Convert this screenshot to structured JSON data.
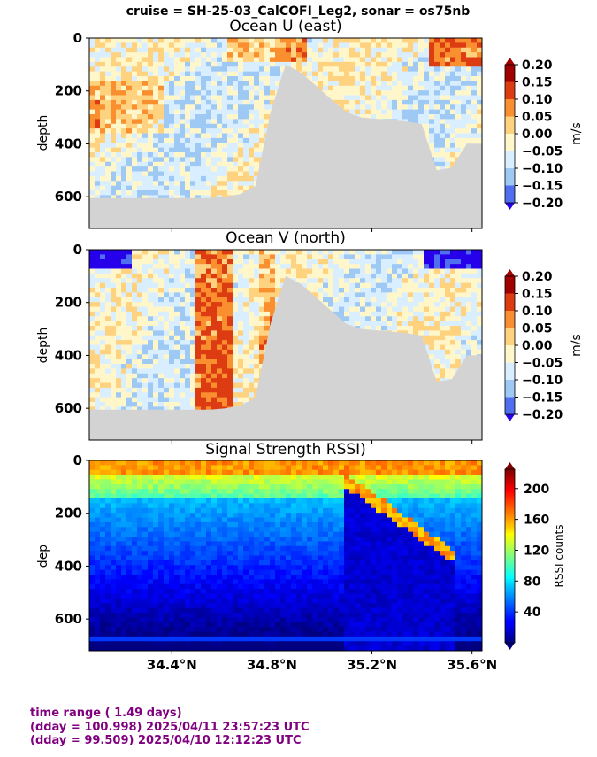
{
  "suptitle": "cruise = SH-25-03_CalCOFI_Leg2,  sonar = os75nb",
  "colors": {
    "bathymetry": "#d3d3d3",
    "footer_text": "#800080"
  },
  "chart_data": [
    {
      "type": "heatmap",
      "title": "Ocean U (east)",
      "ylabel": "depth",
      "xlabel": "",
      "x_tick_labels": [
        "34.4°N",
        "34.8°N",
        "35.2°N",
        "35.6°N"
      ],
      "x_ticks": [
        34.4,
        34.8,
        35.2,
        35.6
      ],
      "x_tick_labels_visible": false,
      "xlim": [
        34.07,
        35.64
      ],
      "y_tick_labels": [
        "0",
        "200",
        "400",
        "600"
      ],
      "y_ticks": [
        0,
        200,
        400,
        600
      ],
      "ylim": [
        720,
        0
      ],
      "y_inverted": true,
      "colorbar": {
        "label": "m/s",
        "ticks": [
          "0.20",
          "0.15",
          "0.10",
          "0.05",
          "0.00",
          "−0.05",
          "−0.10",
          "−0.15",
          "−0.20"
        ],
        "range": [
          -0.2,
          0.2
        ],
        "extend": "both",
        "colormap": "diverging blue-white-red"
      },
      "bathymetry_depth": [
        605,
        605,
        605,
        605,
        605,
        605,
        605,
        605,
        605,
        600,
        590,
        560,
        280,
        100,
        130,
        180,
        230,
        280,
        300,
        305,
        310,
        315,
        325,
        500,
        490,
        400,
        400
      ]
    },
    {
      "type": "heatmap",
      "title": "Ocean V (north)",
      "ylabel": "depth",
      "xlabel": "",
      "x_tick_labels": [
        "34.4°N",
        "34.8°N",
        "35.2°N",
        "35.6°N"
      ],
      "x_ticks": [
        34.4,
        34.8,
        35.2,
        35.6
      ],
      "x_tick_labels_visible": false,
      "xlim": [
        34.07,
        35.64
      ],
      "y_tick_labels": [
        "0",
        "200",
        "400",
        "600"
      ],
      "y_ticks": [
        0,
        200,
        400,
        600
      ],
      "ylim": [
        720,
        0
      ],
      "y_inverted": true,
      "colorbar": {
        "label": "m/s",
        "ticks": [
          "0.20",
          "0.15",
          "0.10",
          "0.05",
          "0.00",
          "−0.05",
          "−0.10",
          "−0.15",
          "−0.20"
        ],
        "range": [
          -0.2,
          0.2
        ],
        "extend": "both",
        "colormap": "diverging blue-white-red"
      },
      "bathymetry_depth": [
        605,
        605,
        605,
        605,
        605,
        605,
        605,
        605,
        605,
        600,
        590,
        560,
        280,
        100,
        130,
        180,
        230,
        280,
        300,
        305,
        310,
        315,
        325,
        500,
        490,
        400,
        400
      ]
    },
    {
      "type": "heatmap",
      "title": "Signal Strength RSSI)",
      "ylabel": "dep",
      "xlabel": "",
      "x_tick_labels": [
        "34.4°N",
        "34.8°N",
        "35.2°N",
        "35.6°N"
      ],
      "x_ticks": [
        34.4,
        34.8,
        35.2,
        35.6
      ],
      "x_tick_labels_visible": true,
      "xlim": [
        34.07,
        35.64
      ],
      "y_tick_labels": [
        "0",
        "200",
        "400",
        "600"
      ],
      "y_ticks": [
        0,
        200,
        400,
        600
      ],
      "ylim": [
        720,
        0
      ],
      "y_inverted": true,
      "colorbar": {
        "label": "RSSI counts",
        "ticks": [
          "200",
          "160",
          "120",
          "80",
          "40"
        ],
        "range": [
          0,
          225
        ],
        "extend": "both",
        "colormap": "jet"
      }
    }
  ],
  "footer": {
    "line1": "time range ( 1.49 days)",
    "line2": "(dday = 100.998) 2025/04/11 23:57:23 UTC",
    "line3": "(dday = 99.509) 2025/04/10 12:12:23 UTC"
  }
}
